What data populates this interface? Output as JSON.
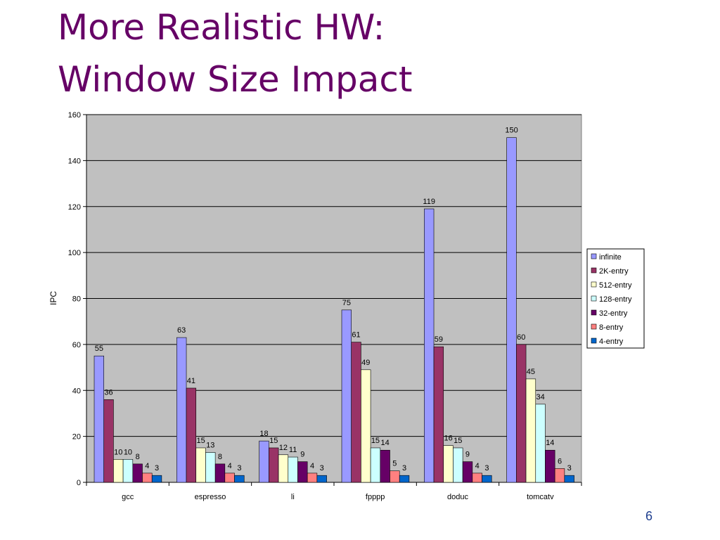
{
  "slide": {
    "title_line1": "More Realistic HW:",
    "title_line2": "Window Size Impact",
    "page_number": "6"
  },
  "colors": {
    "title": "#660066",
    "plot_background": "#c0c0c0",
    "series": [
      "#9999ff",
      "#993366",
      "#ffffcc",
      "#ccffff",
      "#660066",
      "#ff8080",
      "#0066cc"
    ]
  },
  "chart_data": {
    "type": "bar",
    "ylabel": "IPC",
    "ylim": [
      0,
      160
    ],
    "yticks": [
      0,
      20,
      40,
      60,
      80,
      100,
      120,
      140,
      160
    ],
    "grid": true,
    "legend_position": "right",
    "categories": [
      "gcc",
      "espresso",
      "li",
      "fpppp",
      "doduc",
      "tomcatv"
    ],
    "series": [
      {
        "name": "infinite",
        "values": [
          55,
          63,
          18,
          75,
          119,
          150
        ]
      },
      {
        "name": "2K-entry",
        "values": [
          36,
          41,
          15,
          61,
          59,
          60
        ]
      },
      {
        "name": "512-entry",
        "values": [
          10,
          15,
          12,
          49,
          16,
          45
        ]
      },
      {
        "name": "128-entry",
        "values": [
          10,
          13,
          11,
          15,
          15,
          34
        ]
      },
      {
        "name": "32-entry",
        "values": [
          8,
          8,
          9,
          14,
          9,
          14
        ]
      },
      {
        "name": "8-entry",
        "values": [
          4,
          4,
          4,
          5,
          4,
          6
        ]
      },
      {
        "name": "4-entry",
        "values": [
          3,
          3,
          3,
          3,
          3,
          3
        ]
      }
    ]
  }
}
